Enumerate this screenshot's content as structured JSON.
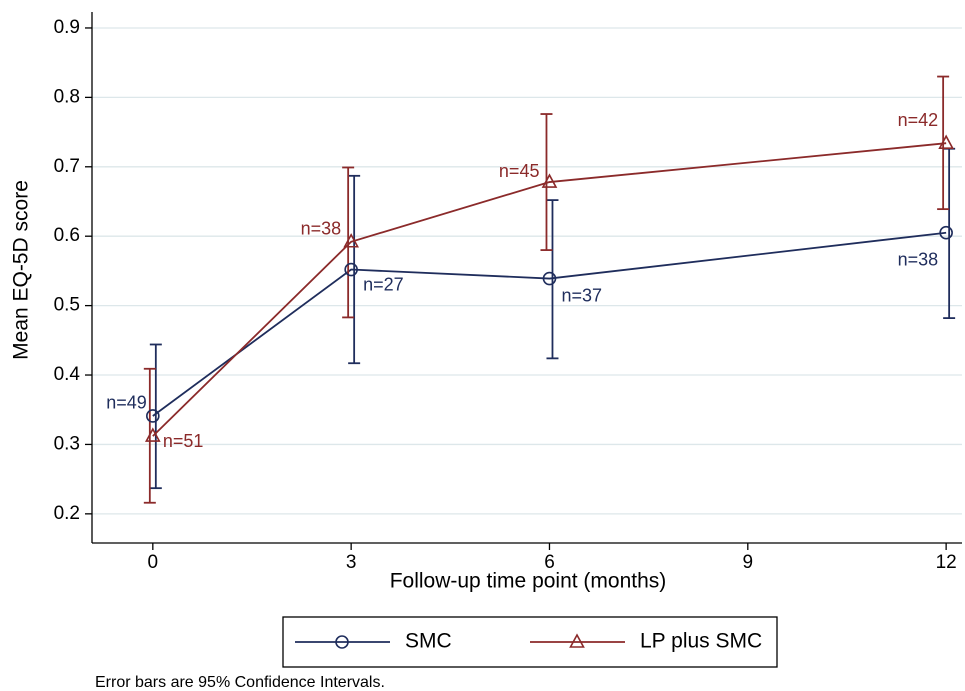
{
  "chart_data": {
    "type": "line",
    "x_label": "Follow-up time point (months)",
    "y_label": "Mean EQ-5D score",
    "note": "Error bars are 95% Confidence Intervals.",
    "x": [
      0,
      3,
      6,
      12
    ],
    "xlim": [
      -0.92,
      12.24
    ],
    "xticks": [
      0,
      3,
      6,
      9,
      12
    ],
    "ylim": [
      0.158,
      0.923
    ],
    "yticks": [
      0.2,
      0.3,
      0.4,
      0.5,
      0.6,
      0.7,
      0.8,
      0.9
    ],
    "grid": true,
    "series": [
      {
        "name": "SMC",
        "color": "#1f2d5c",
        "marker": "circle",
        "values": [
          0.341,
          0.552,
          0.539,
          0.605
        ],
        "ci_low": [
          0.237,
          0.417,
          0.424,
          0.482
        ],
        "ci_high": [
          0.444,
          0.687,
          0.652,
          0.726
        ],
        "n_labels": [
          "n=49",
          "n=27",
          "n=37",
          "n=38"
        ]
      },
      {
        "name": "LP plus SMC",
        "color": "#8b2a2a",
        "marker": "triangle",
        "values": [
          0.312,
          0.592,
          0.678,
          0.734
        ],
        "ci_low": [
          0.216,
          0.483,
          0.58,
          0.639
        ],
        "ci_high": [
          0.409,
          0.699,
          0.776,
          0.83
        ],
        "n_labels": [
          "n=51",
          "n=38",
          "n=45",
          "n=42"
        ]
      }
    ]
  }
}
